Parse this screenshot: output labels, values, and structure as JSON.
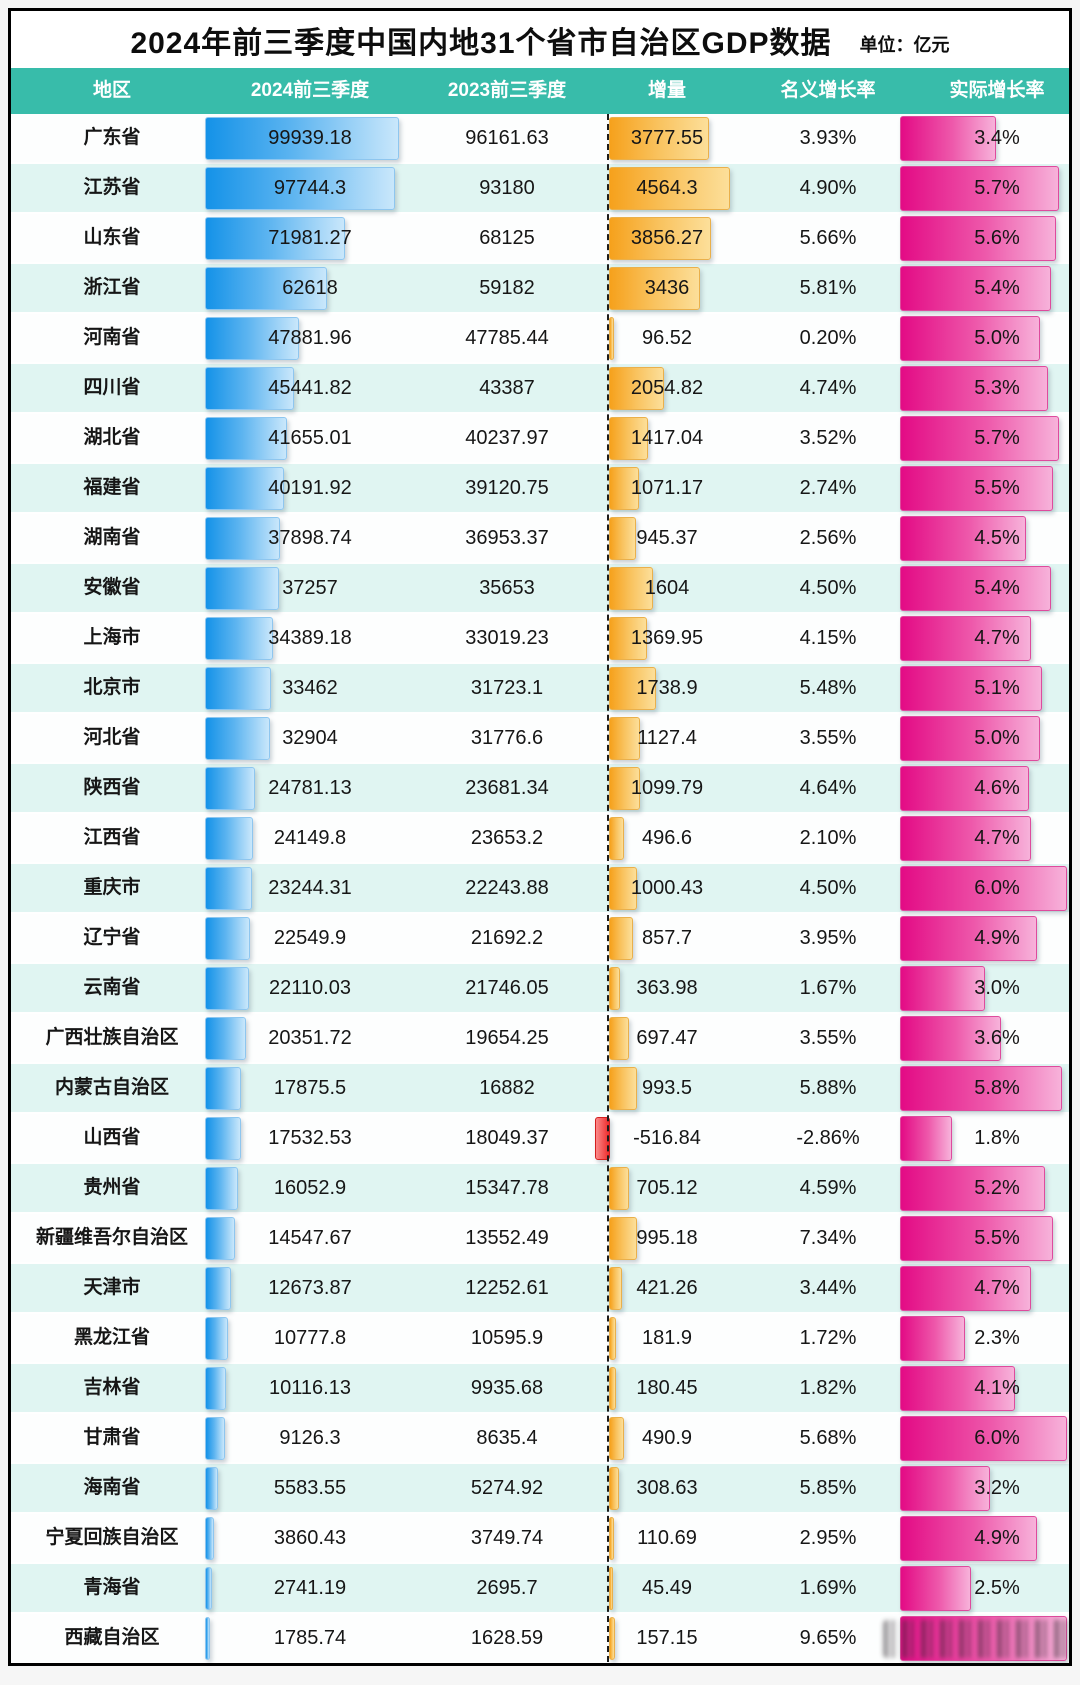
{
  "title": "2024年前三季度中国内地31个省市自治区GDP数据",
  "unit_label": "单位：亿元",
  "columns": [
    "地区",
    "2024前三季度",
    "2023前三季度",
    "增量",
    "名义增长率",
    "实际增长率"
  ],
  "colors": {
    "header_teal": "#38bcaa",
    "row_alt_cyan": "#e0f5f2",
    "bar_blue_start": "#1492e8",
    "bar_blue_end": "#c9e7fb",
    "bar_orange_start": "#f6a11c",
    "bar_orange_end": "#fcdf9a",
    "bar_pink_start": "#e30b85",
    "bar_pink_end": "#f7b2da",
    "bar_negative_red": "#ef2b2b",
    "frame_border": "#000000"
  },
  "rows": [
    {
      "region": "广东省",
      "gdp2024": "99939.18",
      "gdp2023": "96161.63",
      "inc": "3777.55",
      "nominal": "3.93%",
      "real": "3.4%"
    },
    {
      "region": "江苏省",
      "gdp2024": "97744.3",
      "gdp2023": "93180",
      "inc": "4564.3",
      "nominal": "4.90%",
      "real": "5.7%"
    },
    {
      "region": "山东省",
      "gdp2024": "71981.27",
      "gdp2023": "68125",
      "inc": "3856.27",
      "nominal": "5.66%",
      "real": "5.6%"
    },
    {
      "region": "浙江省",
      "gdp2024": "62618",
      "gdp2023": "59182",
      "inc": "3436",
      "nominal": "5.81%",
      "real": "5.4%"
    },
    {
      "region": "河南省",
      "gdp2024": "47881.96",
      "gdp2023": "47785.44",
      "inc": "96.52",
      "nominal": "0.20%",
      "real": "5.0%"
    },
    {
      "region": "四川省",
      "gdp2024": "45441.82",
      "gdp2023": "43387",
      "inc": "2054.82",
      "nominal": "4.74%",
      "real": "5.3%"
    },
    {
      "region": "湖北省",
      "gdp2024": "41655.01",
      "gdp2023": "40237.97",
      "inc": "1417.04",
      "nominal": "3.52%",
      "real": "5.7%"
    },
    {
      "region": "福建省",
      "gdp2024": "40191.92",
      "gdp2023": "39120.75",
      "inc": "1071.17",
      "nominal": "2.74%",
      "real": "5.5%"
    },
    {
      "region": "湖南省",
      "gdp2024": "37898.74",
      "gdp2023": "36953.37",
      "inc": "945.37",
      "nominal": "2.56%",
      "real": "4.5%"
    },
    {
      "region": "安徽省",
      "gdp2024": "37257",
      "gdp2023": "35653",
      "inc": "1604",
      "nominal": "4.50%",
      "real": "5.4%"
    },
    {
      "region": "上海市",
      "gdp2024": "34389.18",
      "gdp2023": "33019.23",
      "inc": "1369.95",
      "nominal": "4.15%",
      "real": "4.7%"
    },
    {
      "region": "北京市",
      "gdp2024": "33462",
      "gdp2023": "31723.1",
      "inc": "1738.9",
      "nominal": "5.48%",
      "real": "5.1%"
    },
    {
      "region": "河北省",
      "gdp2024": "32904",
      "gdp2023": "31776.6",
      "inc": "1127.4",
      "nominal": "3.55%",
      "real": "5.0%"
    },
    {
      "region": "陕西省",
      "gdp2024": "24781.13",
      "gdp2023": "23681.34",
      "inc": "1099.79",
      "nominal": "4.64%",
      "real": "4.6%"
    },
    {
      "region": "江西省",
      "gdp2024": "24149.8",
      "gdp2023": "23653.2",
      "inc": "496.6",
      "nominal": "2.10%",
      "real": "4.7%"
    },
    {
      "region": "重庆市",
      "gdp2024": "23244.31",
      "gdp2023": "22243.88",
      "inc": "1000.43",
      "nominal": "4.50%",
      "real": "6.0%"
    },
    {
      "region": "辽宁省",
      "gdp2024": "22549.9",
      "gdp2023": "21692.2",
      "inc": "857.7",
      "nominal": "3.95%",
      "real": "4.9%"
    },
    {
      "region": "云南省",
      "gdp2024": "22110.03",
      "gdp2023": "21746.05",
      "inc": "363.98",
      "nominal": "1.67%",
      "real": "3.0%"
    },
    {
      "region": "广西壮族自治区",
      "gdp2024": "20351.72",
      "gdp2023": "19654.25",
      "inc": "697.47",
      "nominal": "3.55%",
      "real": "3.6%"
    },
    {
      "region": "内蒙古自治区",
      "gdp2024": "17875.5",
      "gdp2023": "16882",
      "inc": "993.5",
      "nominal": "5.88%",
      "real": "5.8%"
    },
    {
      "region": "山西省",
      "gdp2024": "17532.53",
      "gdp2023": "18049.37",
      "inc": "-516.84",
      "nominal": "-2.86%",
      "real": "1.8%"
    },
    {
      "region": "贵州省",
      "gdp2024": "16052.9",
      "gdp2023": "15347.78",
      "inc": "705.12",
      "nominal": "4.59%",
      "real": "5.2%"
    },
    {
      "region": "新疆维吾尔自治区",
      "gdp2024": "14547.67",
      "gdp2023": "13552.49",
      "inc": "995.18",
      "nominal": "7.34%",
      "real": "5.5%"
    },
    {
      "region": "天津市",
      "gdp2024": "12673.87",
      "gdp2023": "12252.61",
      "inc": "421.26",
      "nominal": "3.44%",
      "real": "4.7%"
    },
    {
      "region": "黑龙江省",
      "gdp2024": "10777.8",
      "gdp2023": "10595.9",
      "inc": "181.9",
      "nominal": "1.72%",
      "real": "2.3%"
    },
    {
      "region": "吉林省",
      "gdp2024": "10116.13",
      "gdp2023": "9935.68",
      "inc": "180.45",
      "nominal": "1.82%",
      "real": "4.1%"
    },
    {
      "region": "甘肃省",
      "gdp2024": "9126.3",
      "gdp2023": "8635.4",
      "inc": "490.9",
      "nominal": "5.68%",
      "real": "6.0%"
    },
    {
      "region": "海南省",
      "gdp2024": "5583.55",
      "gdp2023": "5274.92",
      "inc": "308.63",
      "nominal": "5.85%",
      "real": "3.2%"
    },
    {
      "region": "宁夏回族自治区",
      "gdp2024": "3860.43",
      "gdp2023": "3749.74",
      "inc": "110.69",
      "nominal": "2.95%",
      "real": "4.9%"
    },
    {
      "region": "青海省",
      "gdp2024": "2741.19",
      "gdp2023": "2695.7",
      "inc": "45.49",
      "nominal": "1.69%",
      "real": "2.5%"
    },
    {
      "region": "西藏自治区",
      "gdp2024": "1785.74",
      "gdp2023": "1628.59",
      "inc": "157.15",
      "nominal": "9.65%",
      "real": "",
      "real_bar": 6.0,
      "watermark": true
    }
  ],
  "chart_data": {
    "type": "table",
    "title": "2024年前三季度中国内地31个省市自治区GDP数据",
    "unit": "亿元",
    "categories": [
      "广东省",
      "江苏省",
      "山东省",
      "浙江省",
      "河南省",
      "四川省",
      "湖北省",
      "福建省",
      "湖南省",
      "安徽省",
      "上海市",
      "北京市",
      "河北省",
      "陕西省",
      "江西省",
      "重庆市",
      "辽宁省",
      "云南省",
      "广西壮族自治区",
      "内蒙古自治区",
      "山西省",
      "贵州省",
      "新疆维吾尔自治区",
      "天津市",
      "黑龙江省",
      "吉林省",
      "甘肃省",
      "海南省",
      "宁夏回族自治区",
      "青海省",
      "西藏自治区"
    ],
    "series": [
      {
        "name": "2024前三季度",
        "values": [
          99939.18,
          97744.3,
          71981.27,
          62618,
          47881.96,
          45441.82,
          41655.01,
          40191.92,
          37898.74,
          37257,
          34389.18,
          33462,
          32904,
          24781.13,
          24149.8,
          23244.31,
          22549.9,
          22110.03,
          20351.72,
          17875.5,
          17532.53,
          16052.9,
          14547.67,
          12673.87,
          10777.8,
          10116.13,
          9126.3,
          5583.55,
          3860.43,
          2741.19,
          1785.74
        ]
      },
      {
        "name": "2023前三季度",
        "values": [
          96161.63,
          93180,
          68125,
          59182,
          47785.44,
          43387,
          40237.97,
          39120.75,
          36953.37,
          35653,
          33019.23,
          31723.1,
          31776.6,
          23681.34,
          23653.2,
          22243.88,
          21692.2,
          21746.05,
          19654.25,
          16882,
          18049.37,
          15347.78,
          13552.49,
          12252.61,
          10595.9,
          9935.68,
          8635.4,
          5274.92,
          3749.74,
          2695.7,
          1628.59
        ]
      },
      {
        "name": "增量",
        "values": [
          3777.55,
          4564.3,
          3856.27,
          3436,
          96.52,
          2054.82,
          1417.04,
          1071.17,
          945.37,
          1604,
          1369.95,
          1738.9,
          1127.4,
          1099.79,
          496.6,
          1000.43,
          857.7,
          363.98,
          697.47,
          993.5,
          -516.84,
          705.12,
          995.18,
          421.26,
          181.9,
          180.45,
          490.9,
          308.63,
          110.69,
          45.49,
          157.15
        ]
      },
      {
        "name": "名义增长率(%)",
        "values": [
          3.93,
          4.9,
          5.66,
          5.81,
          0.2,
          4.74,
          3.52,
          2.74,
          2.56,
          4.5,
          4.15,
          5.48,
          3.55,
          4.64,
          2.1,
          4.5,
          3.95,
          1.67,
          3.55,
          5.88,
          -2.86,
          4.59,
          7.34,
          3.44,
          1.72,
          1.82,
          5.68,
          5.85,
          2.95,
          1.69,
          9.65
        ]
      },
      {
        "name": "实际增长率(%)",
        "values": [
          3.4,
          5.7,
          5.6,
          5.4,
          5.0,
          5.3,
          5.7,
          5.5,
          4.5,
          5.4,
          4.7,
          5.1,
          5.0,
          4.6,
          4.7,
          6.0,
          4.9,
          3.0,
          3.6,
          5.8,
          1.8,
          5.2,
          5.5,
          4.7,
          2.3,
          4.1,
          6.0,
          3.2,
          4.9,
          2.5,
          null
        ]
      }
    ],
    "legend_position": "none",
    "grid": false
  }
}
